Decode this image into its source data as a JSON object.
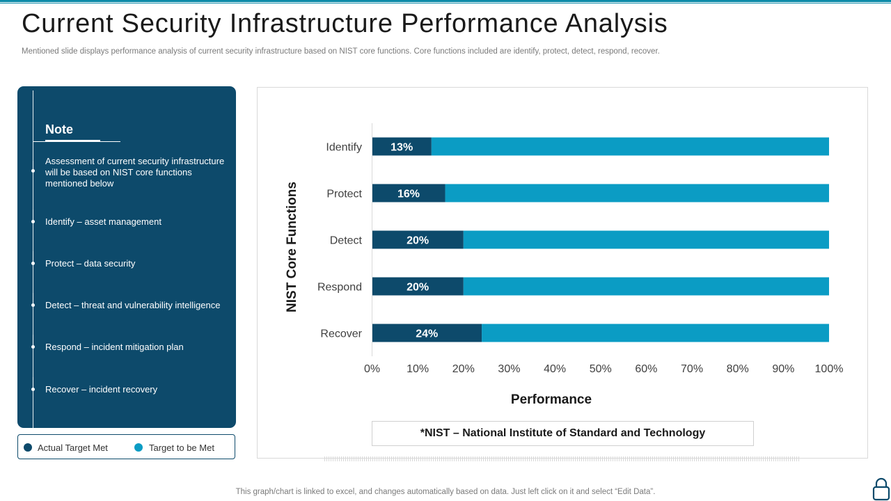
{
  "header": {
    "title": "Current Security Infrastructure Performance Analysis",
    "subtitle": "Mentioned slide displays performance analysis of current security infrastructure based on NIST core functions. Core functions included are identify, protect, detect, respond, recover."
  },
  "note": {
    "title": "Note",
    "items": [
      "Assessment of current security infrastructure will be based on NIST core functions mentioned below",
      "Identify – asset management",
      "Protect – data security",
      "Detect – threat and vulnerability  intelligence",
      "Respond  – incident mitigation plan",
      "Recover  – incident recovery"
    ]
  },
  "legend": {
    "actual": "Actual Target  Met",
    "target": "Target  to be Met"
  },
  "colors": {
    "actual": "#0d4a6b",
    "target": "#0b9cc4",
    "panel": "#0d4a6b"
  },
  "chart_data": {
    "type": "bar",
    "orientation": "horizontal",
    "stacked": true,
    "categories": [
      "Identify",
      "Protect",
      "Detect",
      "Respond",
      "Recover"
    ],
    "series": [
      {
        "name": "Actual Target Met",
        "values": [
          13,
          16,
          20,
          20,
          24
        ],
        "labels": [
          "13%",
          "16%",
          "20%",
          "20%",
          "24%"
        ]
      },
      {
        "name": "Target to be Met",
        "values": [
          87,
          84,
          80,
          80,
          76
        ]
      }
    ],
    "xlabel": "Performance",
    "ylabel": "NIST Core Functions",
    "xlim": [
      0,
      100
    ],
    "xticks": [
      "0%",
      "10%",
      "20%",
      "30%",
      "40%",
      "50%",
      "60%",
      "70%",
      "80%",
      "90%",
      "100%"
    ],
    "grid": false
  },
  "footnote": "*NIST – National Institute of Standard and Technology",
  "footer": "This graph/chart is linked to excel,  and changes automatically based on data. Just left click on it and select “Edit Data”.",
  "icons": {
    "corner": "lock-icon"
  }
}
